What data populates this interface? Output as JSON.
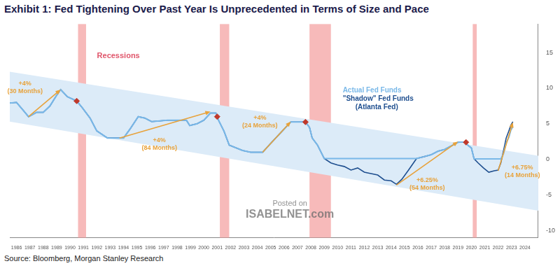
{
  "chart_data": {
    "type": "line",
    "title": "Exhibit 1:  Fed Tightening Over Past Year Is Unprecedented in Terms of Size and Pace",
    "source": "Source: Bloomberg, Morgan Stanley Research",
    "watermark": [
      "Posted on",
      "ISABELNET.com"
    ],
    "grid": false,
    "x": [
      1985.5,
      1986.0,
      1986.5,
      1986.9,
      1987.5,
      1988.0,
      1988.5,
      1989.0,
      1989.3,
      1989.8,
      1990.5,
      1990.9,
      1991.5,
      1992.0,
      1992.8,
      1993.5,
      1994.0,
      1994.5,
      1995.1,
      1995.6,
      1996.1,
      1997.3,
      1998.7,
      1998.95,
      1999.5,
      2000.0,
      2000.5,
      2000.9,
      2001.1,
      2001.5,
      2001.9,
      2002.9,
      2003.5,
      2004.4,
      2005.0,
      2005.5,
      2006.0,
      2006.5,
      2007.6,
      2007.9,
      2008.1,
      2008.5,
      2008.9,
      2009.0,
      2009.5,
      2010.0,
      2010.5,
      2011.0,
      2011.5,
      2012.0,
      2012.5,
      2013.0,
      2013.5,
      2014.0,
      2014.4,
      2014.8,
      2015.3,
      2015.9,
      2016.5,
      2017.0,
      2017.5,
      2018.0,
      2018.5,
      2019.0,
      2019.5,
      2019.8,
      2020.0,
      2020.2,
      2020.5,
      2020.9,
      2021.3,
      2021.7,
      2022.0,
      2022.2,
      2022.4,
      2022.6,
      2022.8,
      2022.95,
      2023.1
    ],
    "series": [
      {
        "name": "Actual Fed Funds",
        "color": "#79b8e8",
        "values": [
          7.9,
          8.0,
          6.9,
          6.0,
          6.6,
          6.6,
          7.5,
          9.0,
          9.8,
          8.8,
          8.2,
          7.3,
          5.8,
          4.0,
          3.0,
          3.0,
          3.0,
          4.3,
          6.0,
          5.8,
          5.3,
          5.5,
          5.5,
          4.75,
          5.0,
          5.5,
          6.5,
          6.5,
          5.5,
          4.0,
          2.0,
          1.25,
          1.0,
          1.0,
          2.25,
          3.25,
          4.25,
          5.25,
          5.25,
          4.5,
          3.0,
          2.0,
          0.5,
          0.12,
          0.12,
          0.12,
          0.12,
          0.12,
          0.12,
          0.12,
          0.12,
          0.12,
          0.12,
          0.12,
          0.12,
          0.12,
          0.12,
          0.12,
          0.4,
          0.65,
          1.15,
          1.4,
          1.9,
          2.4,
          2.4,
          1.9,
          1.6,
          0.08,
          0.08,
          0.08,
          0.08,
          0.08,
          0.08,
          0.08,
          0.8,
          2.3,
          3.1,
          4.1,
          4.6
        ]
      },
      {
        "name": "\"Shadow\" Fed Funds (Atlanta Fed)",
        "color": "#1f4f8f",
        "values": [
          7.9,
          8.0,
          6.9,
          6.0,
          6.6,
          6.6,
          7.5,
          9.0,
          9.8,
          8.8,
          8.2,
          7.3,
          5.8,
          4.0,
          3.0,
          3.0,
          3.0,
          4.3,
          6.0,
          5.8,
          5.3,
          5.5,
          5.5,
          4.75,
          5.0,
          5.5,
          6.5,
          6.5,
          5.5,
          4.0,
          2.0,
          1.25,
          1.0,
          1.0,
          2.25,
          3.25,
          4.25,
          5.25,
          5.25,
          4.5,
          3.0,
          2.0,
          0.5,
          0.12,
          -0.5,
          -0.8,
          -1.0,
          -1.5,
          -1.2,
          -1.8,
          -2.0,
          -2.2,
          -2.9,
          -3.0,
          -3.5,
          -2.8,
          -1.5,
          0.12,
          0.4,
          0.65,
          1.15,
          1.4,
          1.9,
          2.4,
          2.4,
          1.9,
          1.6,
          0.08,
          -0.5,
          -1.2,
          -1.8,
          -1.6,
          -1.5,
          -0.5,
          1.2,
          3.0,
          4.0,
          4.8,
          5.3
        ]
      }
    ],
    "xlim": [
      1985.5,
      2025
    ],
    "xticks": [
      1986,
      1987,
      1988,
      1989,
      1990,
      1991,
      1992,
      1993,
      1994,
      1995,
      1996,
      1997,
      1998,
      1999,
      2000,
      2001,
      2002,
      2003,
      2004,
      2005,
      2006,
      2007,
      2008,
      2009,
      2010,
      2011,
      2012,
      2013,
      2014,
      2015,
      2016,
      2017,
      2018,
      2019,
      2020,
      2021,
      2022,
      2023,
      2024
    ],
    "ylim": [
      -11,
      19
    ],
    "yticks": [
      -10,
      -5,
      0,
      5,
      10,
      15
    ],
    "recessions": {
      "label": "Recessions",
      "color": "#f4a3a3",
      "spans": [
        [
          1990.6,
          1991.2
        ],
        [
          2001.2,
          2001.9
        ],
        [
          2007.9,
          2009.5
        ],
        [
          2020.1,
          2020.4
        ]
      ]
    },
    "recession_starts": {
      "color": "#c0392b",
      "x": [
        1990.5,
        2001.0,
        2007.6,
        2019.6
      ],
      "values": [
        8.2,
        6.0,
        5.25,
        2.4
      ]
    },
    "channel": {
      "color": "#dcebf8",
      "x": [
        1985.5,
        2025
      ],
      "upper": [
        12.3,
        0.5
      ],
      "lower": [
        5.3,
        -7.2
      ]
    },
    "annotations": {
      "color": "#e8a23a",
      "items": [
        {
          "lines": [
            "+4%",
            "(30 Months)"
          ],
          "from": [
            1986.9,
            6.0
          ],
          "to": [
            1989.3,
            9.8
          ]
        },
        {
          "lines": [
            "+4%",
            "(84 Months)"
          ],
          "from": [
            1993.7,
            3.0
          ],
          "to": [
            2000.5,
            6.7
          ]
        },
        {
          "lines": [
            "+4%",
            "(24 Months)"
          ],
          "from": [
            2004.4,
            1.0
          ],
          "to": [
            2006.5,
            5.3
          ]
        },
        {
          "lines": [
            "+6.25%",
            "(54 Months)"
          ],
          "from": [
            2014.4,
            -3.6
          ],
          "to": [
            2019.0,
            2.5
          ]
        },
        {
          "lines": [
            "+6.75%",
            "(14 Months)"
          ],
          "from": [
            2022.0,
            -1.6
          ],
          "to": [
            2023.1,
            5.2
          ]
        }
      ]
    }
  }
}
